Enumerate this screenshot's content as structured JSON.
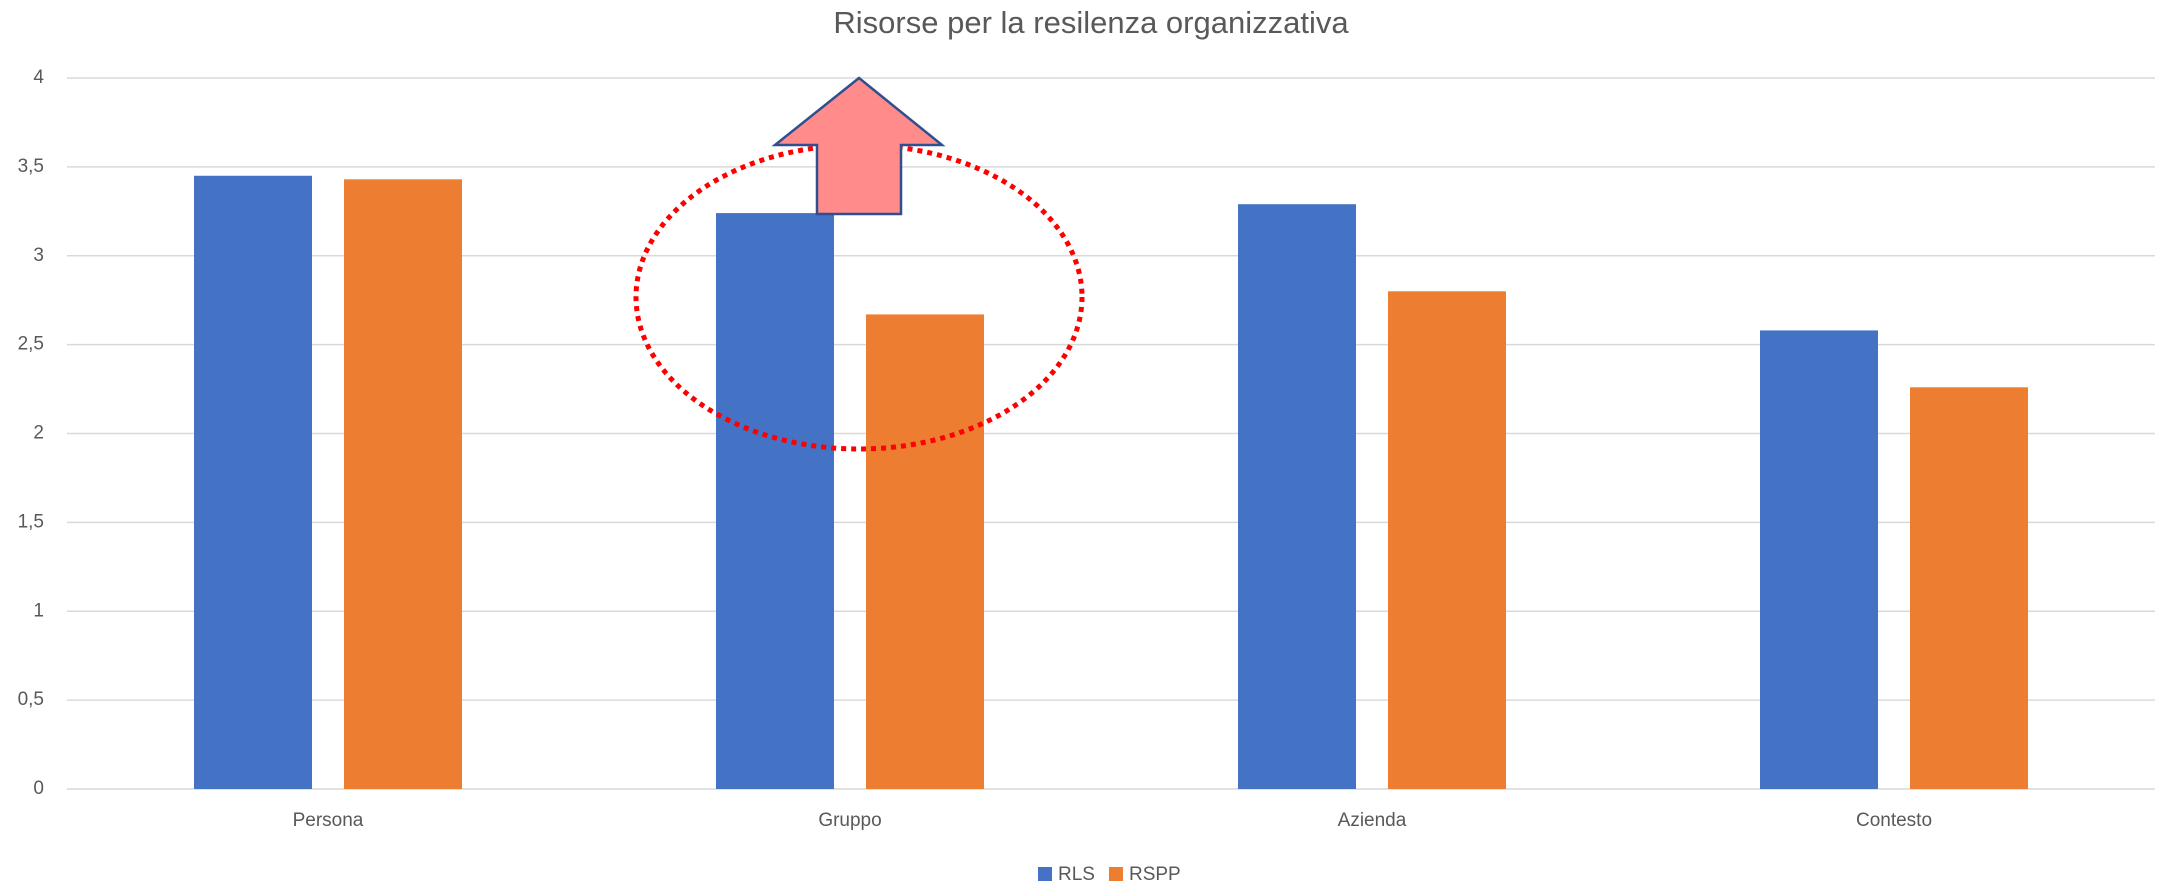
{
  "chart_data": {
    "type": "bar",
    "title": "Risorse per la resilenza organizzativa",
    "categories": [
      "Persona",
      "Gruppo",
      "Azienda",
      "Contesto"
    ],
    "series": [
      {
        "name": "RLS",
        "color": "#4472c4",
        "values": [
          3.45,
          3.24,
          3.29,
          2.58
        ]
      },
      {
        "name": "RSPP",
        "color": "#ed7d31",
        "values": [
          3.43,
          2.67,
          2.8,
          2.26
        ]
      }
    ],
    "ylim": [
      0,
      4
    ],
    "yticks": [
      0,
      {
        "value": 0.5,
        "label": "0,5"
      },
      1,
      {
        "value": 1.5,
        "label": "1,5"
      },
      2,
      {
        "value": 2.5,
        "label": "2,5"
      },
      3,
      {
        "value": 3.5,
        "label": "3,5"
      },
      4
    ],
    "grid": true,
    "legend": "bottom"
  }
}
